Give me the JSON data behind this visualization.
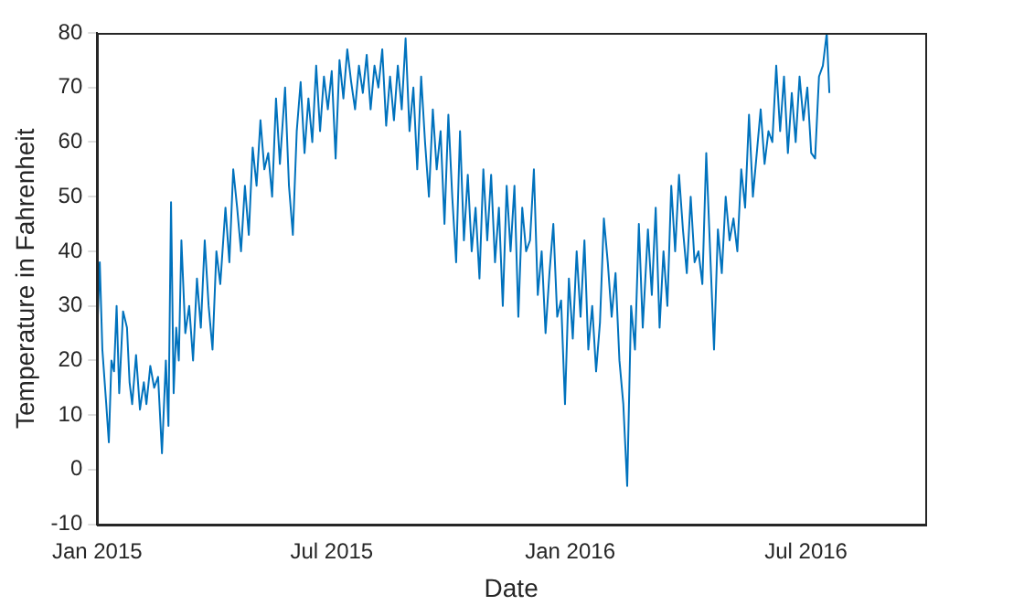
{
  "chart_data": {
    "type": "line",
    "xlabel": "Date",
    "ylabel": "Temperature in Fahrenheit",
    "grid": false,
    "legend": false,
    "marker": "none",
    "line_style": "solid",
    "xlim": [
      "2015-01-01",
      "2016-10-01"
    ],
    "xticks": [
      {
        "value": "2015-01-01",
        "label": "Jan 2015"
      },
      {
        "value": "2015-07-01",
        "label": "Jul 2015"
      },
      {
        "value": "2016-01-01",
        "label": "Jan 2016"
      },
      {
        "value": "2016-07-01",
        "label": "Jul 2016"
      }
    ],
    "ylim": [
      -10,
      80
    ],
    "yticks": [
      -10,
      0,
      10,
      20,
      30,
      40,
      50,
      60,
      70,
      80
    ],
    "x": [
      "2015-01-01",
      "2015-01-03",
      "2015-01-05",
      "2015-01-08",
      "2015-01-10",
      "2015-01-12",
      "2015-01-14",
      "2015-01-16",
      "2015-01-18",
      "2015-01-21",
      "2015-01-24",
      "2015-01-26",
      "2015-01-28",
      "2015-01-31",
      "2015-02-03",
      "2015-02-06",
      "2015-02-08",
      "2015-02-11",
      "2015-02-14",
      "2015-02-17",
      "2015-02-20",
      "2015-02-23",
      "2015-02-25",
      "2015-02-27",
      "2015-03-01",
      "2015-03-03",
      "2015-03-05",
      "2015-03-07",
      "2015-03-10",
      "2015-03-13",
      "2015-03-16",
      "2015-03-19",
      "2015-03-22",
      "2015-03-25",
      "2015-03-28",
      "2015-03-31",
      "2015-04-03",
      "2015-04-06",
      "2015-04-10",
      "2015-04-13",
      "2015-04-16",
      "2015-04-19",
      "2015-04-22",
      "2015-04-25",
      "2015-04-28",
      "2015-05-01",
      "2015-05-04",
      "2015-05-07",
      "2015-05-10",
      "2015-05-13",
      "2015-05-16",
      "2015-05-19",
      "2015-05-22",
      "2015-05-26",
      "2015-05-29",
      "2015-06-01",
      "2015-06-04",
      "2015-06-07",
      "2015-06-10",
      "2015-06-13",
      "2015-06-16",
      "2015-06-19",
      "2015-06-22",
      "2015-06-25",
      "2015-06-28",
      "2015-07-01",
      "2015-07-04",
      "2015-07-07",
      "2015-07-10",
      "2015-07-13",
      "2015-07-16",
      "2015-07-19",
      "2015-07-22",
      "2015-07-25",
      "2015-07-28",
      "2015-07-31",
      "2015-08-03",
      "2015-08-06",
      "2015-08-09",
      "2015-08-12",
      "2015-08-15",
      "2015-08-18",
      "2015-08-21",
      "2015-08-24",
      "2015-08-27",
      "2015-08-30",
      "2015-09-02",
      "2015-09-05",
      "2015-09-08",
      "2015-09-11",
      "2015-09-14",
      "2015-09-17",
      "2015-09-20",
      "2015-09-23",
      "2015-09-26",
      "2015-09-29",
      "2015-10-02",
      "2015-10-05",
      "2015-10-08",
      "2015-10-11",
      "2015-10-14",
      "2015-10-17",
      "2015-10-20",
      "2015-10-23",
      "2015-10-26",
      "2015-10-29",
      "2015-11-01",
      "2015-11-04",
      "2015-11-07",
      "2015-11-10",
      "2015-11-13",
      "2015-11-16",
      "2015-11-19",
      "2015-11-22",
      "2015-11-25",
      "2015-11-28",
      "2015-12-01",
      "2015-12-04",
      "2015-12-07",
      "2015-12-10",
      "2015-12-13",
      "2015-12-16",
      "2015-12-19",
      "2015-12-22",
      "2015-12-25",
      "2015-12-28",
      "2015-12-31",
      "2016-01-03",
      "2016-01-06",
      "2016-01-09",
      "2016-01-12",
      "2016-01-15",
      "2016-01-18",
      "2016-01-21",
      "2016-01-24",
      "2016-01-27",
      "2016-01-30",
      "2016-02-02",
      "2016-02-05",
      "2016-02-08",
      "2016-02-11",
      "2016-02-14",
      "2016-02-17",
      "2016-02-20",
      "2016-02-23",
      "2016-02-26",
      "2016-03-01",
      "2016-03-04",
      "2016-03-07",
      "2016-03-10",
      "2016-03-13",
      "2016-03-16",
      "2016-03-19",
      "2016-03-22",
      "2016-03-25",
      "2016-03-28",
      "2016-03-31",
      "2016-04-03",
      "2016-04-06",
      "2016-04-09",
      "2016-04-12",
      "2016-04-15",
      "2016-04-18",
      "2016-04-21",
      "2016-04-24",
      "2016-04-27",
      "2016-04-30",
      "2016-05-03",
      "2016-05-06",
      "2016-05-09",
      "2016-05-12",
      "2016-05-15",
      "2016-05-18",
      "2016-05-21",
      "2016-05-24",
      "2016-05-27",
      "2016-05-30",
      "2016-06-02",
      "2016-06-05",
      "2016-06-08",
      "2016-06-11",
      "2016-06-14",
      "2016-06-17",
      "2016-06-20",
      "2016-06-23",
      "2016-06-26",
      "2016-06-29",
      "2016-07-02",
      "2016-07-05",
      "2016-07-08",
      "2016-07-11",
      "2016-07-14",
      "2016-07-17",
      "2016-07-19"
    ],
    "series": [
      {
        "color": "#0072bd",
        "values": [
          25,
          38,
          22,
          12,
          5,
          20,
          18,
          30,
          14,
          29,
          26,
          16,
          12,
          21,
          11,
          16,
          12,
          19,
          15,
          17,
          3,
          20,
          8,
          49,
          14,
          26,
          20,
          42,
          25,
          30,
          20,
          35,
          26,
          42,
          30,
          22,
          40,
          34,
          48,
          38,
          55,
          48,
          40,
          52,
          43,
          59,
          52,
          64,
          55,
          58,
          50,
          68,
          56,
          70,
          52,
          43,
          62,
          71,
          58,
          68,
          60,
          74,
          62,
          72,
          66,
          73,
          57,
          75,
          68,
          77,
          71,
          66,
          74,
          69,
          76,
          66,
          74,
          70,
          77,
          63,
          72,
          64,
          74,
          66,
          79,
          62,
          70,
          55,
          72,
          60,
          50,
          66,
          55,
          62,
          45,
          65,
          50,
          38,
          62,
          42,
          54,
          40,
          48,
          35,
          55,
          42,
          54,
          38,
          48,
          30,
          52,
          40,
          52,
          28,
          48,
          40,
          42,
          55,
          32,
          40,
          25,
          36,
          45,
          28,
          31,
          12,
          35,
          24,
          40,
          28,
          42,
          22,
          30,
          18,
          27,
          46,
          38,
          28,
          36,
          20,
          12,
          -3,
          30,
          22,
          45,
          26,
          44,
          32,
          48,
          26,
          40,
          30,
          52,
          40,
          54,
          44,
          36,
          50,
          38,
          40,
          34,
          58,
          40,
          22,
          44,
          36,
          50,
          42,
          46,
          40,
          55,
          48,
          65,
          50,
          58,
          66,
          56,
          62,
          60,
          74,
          62,
          72,
          58,
          69,
          60,
          72,
          64,
          70,
          58,
          57,
          72,
          74,
          80,
          69
        ]
      }
    ]
  }
}
